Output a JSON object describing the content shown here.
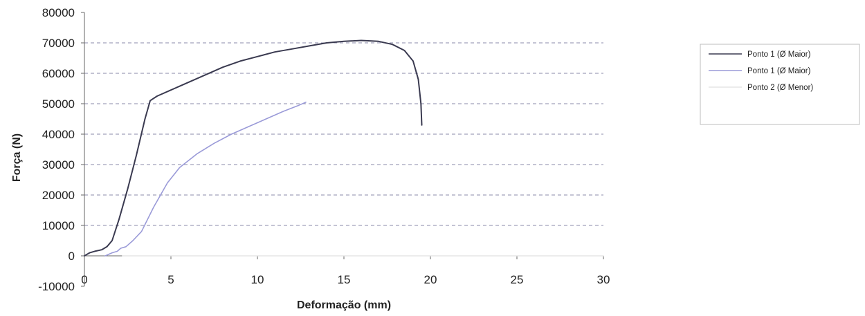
{
  "chart_data": {
    "type": "line",
    "xlabel": "Deformação (mm)",
    "ylabel": "Força (N)",
    "xlim": [
      0,
      30
    ],
    "ylim": [
      -10000,
      80000
    ],
    "x_ticks": [
      0,
      5,
      10,
      15,
      20,
      25,
      30
    ],
    "y_ticks": [
      -10000,
      0,
      10000,
      20000,
      30000,
      40000,
      50000,
      60000,
      70000,
      80000
    ],
    "x_tick_labels": [
      "0",
      "5",
      "10",
      "15",
      "20",
      "25",
      "30"
    ],
    "y_tick_labels": [
      "-10000",
      "0",
      "10000",
      "20000",
      "30000",
      "40000",
      "50000",
      "60000",
      "70000",
      "80000"
    ],
    "grid": "horizontal dashed",
    "legend_position": "right",
    "series": [
      {
        "name": "Ponto 1 (Ø Maior)",
        "color": "#3a3a50",
        "x": [
          0,
          0.3,
          0.6,
          1.0,
          1.3,
          1.6,
          2.0,
          2.5,
          3.0,
          3.5,
          3.8,
          4.2,
          5.0,
          6.0,
          7.0,
          8.0,
          9.0,
          10.0,
          11.0,
          12.0,
          13.0,
          14.0,
          15.0,
          16.0,
          17.0,
          17.8,
          18.5,
          19.0,
          19.3,
          19.45,
          19.5
        ],
        "y": [
          0,
          1000,
          1500,
          2000,
          3000,
          5000,
          12000,
          22000,
          33000,
          45000,
          51000,
          52500,
          54500,
          57000,
          59500,
          62000,
          64000,
          65500,
          67000,
          68000,
          69000,
          70000,
          70500,
          70800,
          70500,
          69500,
          67500,
          64000,
          58000,
          50000,
          43000
        ]
      },
      {
        "name": "Ponto 1 (Ø Maior)",
        "color": "#9a9ad8",
        "x": [
          1.2,
          1.6,
          1.9,
          2.1,
          2.4,
          2.8,
          3.3,
          4.0,
          4.8,
          5.5,
          6.5,
          7.5,
          8.5,
          9.5,
          10.5,
          11.5,
          12.4,
          12.8
        ],
        "y": [
          0,
          1000,
          1500,
          2500,
          3000,
          5000,
          8000,
          16000,
          24000,
          29000,
          33500,
          37000,
          40000,
          42500,
          45000,
          47500,
          49500,
          50500
        ]
      },
      {
        "name": "Ponto 2 (Ø Menor)",
        "color": "#e6e6e6",
        "x": [
          2.2,
          30
        ],
        "y": [
          0,
          0
        ]
      }
    ]
  }
}
